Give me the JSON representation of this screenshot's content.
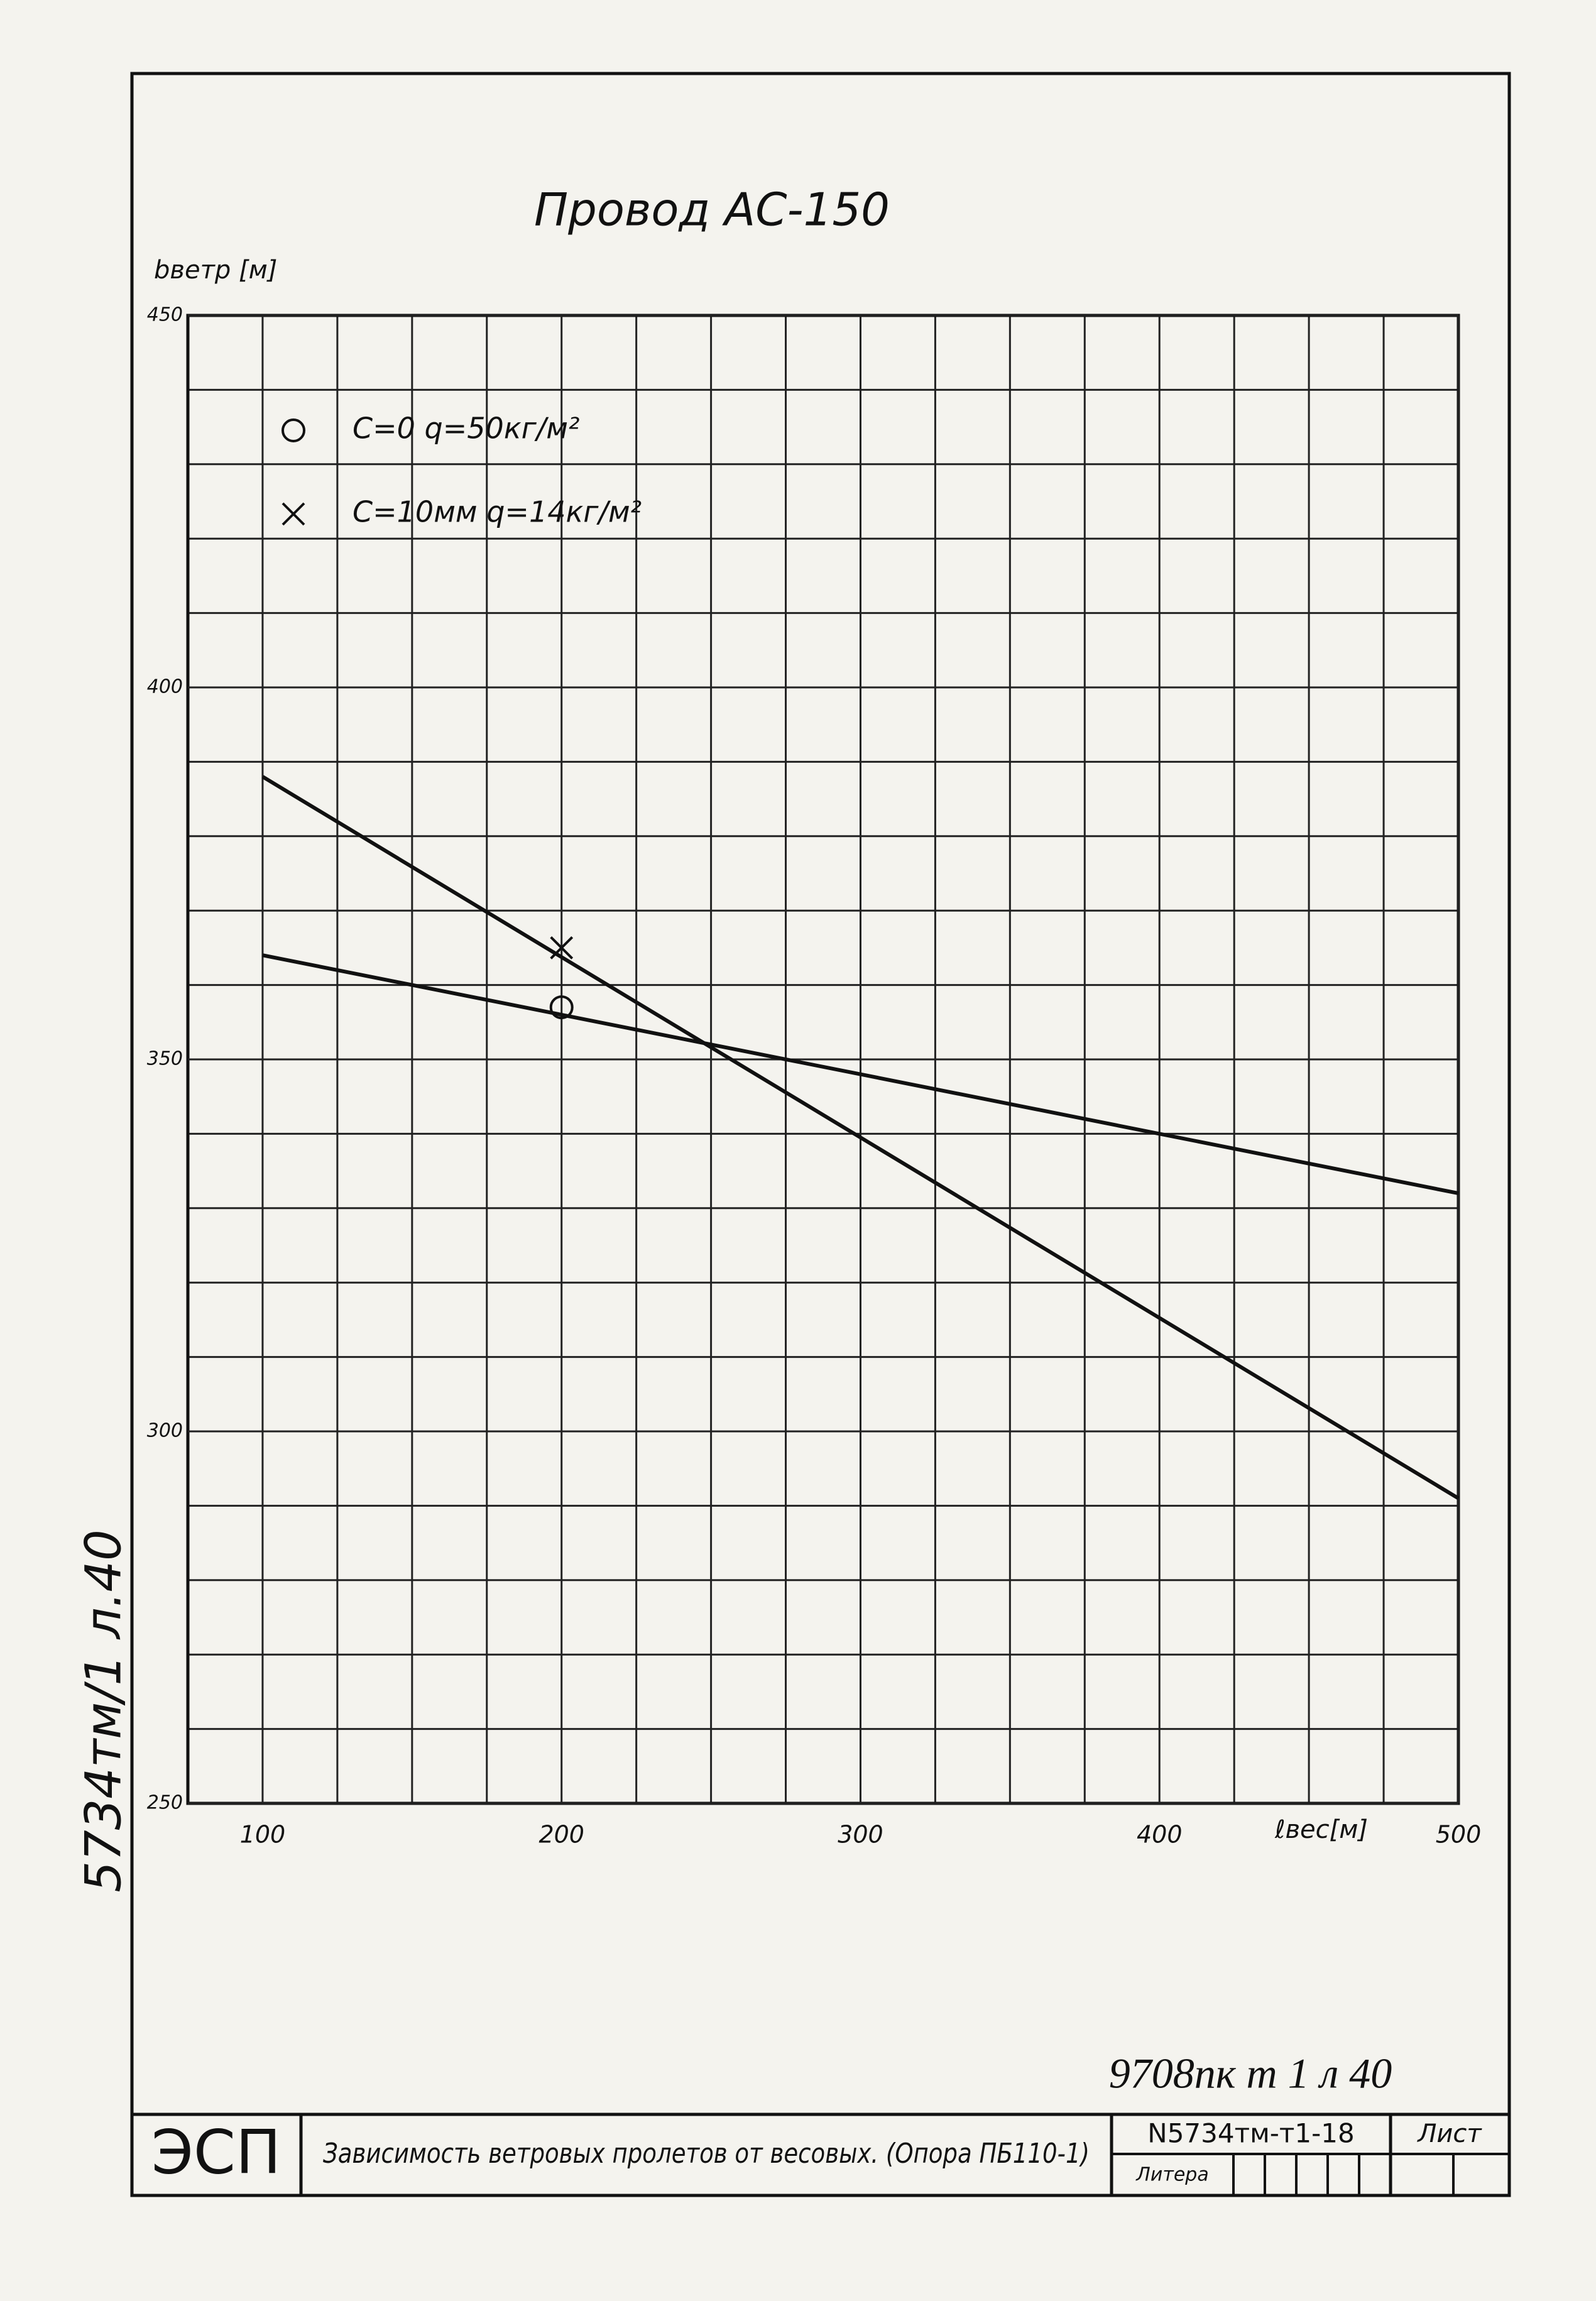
{
  "chart_data": {
    "type": "line",
    "title": "Провод АС-150",
    "y_label": "bветр [м]",
    "x_label": "ℓвес[м]",
    "xlim": [
      75,
      500
    ],
    "ylim": [
      250,
      450
    ],
    "xticks": [
      100,
      200,
      300,
      400,
      500
    ],
    "yticks": [
      250,
      300,
      350,
      400,
      450
    ],
    "grid": true,
    "minor_grid": {
      "x": 25,
      "y": 10
    },
    "legend": "upper left",
    "series": [
      {
        "name": "C=0   q=50кг/м²",
        "marker": "circle",
        "color": "#111111",
        "x": [
          100,
          500
        ],
        "values": [
          364,
          332
        ],
        "point_x": 200,
        "point_y": 357
      },
      {
        "name": "C=10мм   q=14кг/м²",
        "marker": "cross",
        "color": "#111111",
        "x": [
          100,
          500
        ],
        "values": [
          388,
          291
        ],
        "point_x": 200,
        "point_y": 365
      }
    ]
  },
  "sheet": {
    "side_stamp": "5734тм/1 л.40",
    "bottom_note": "9708пк т 1 л 40",
    "stamp": {
      "org": "ЭСП",
      "description": "Зависимость ветровых пролетов от весовых. (Опора ПБ110-1)",
      "code": "N5734тм-т1-18",
      "sheet_label": "Лист",
      "letter_label": "Литера"
    }
  }
}
